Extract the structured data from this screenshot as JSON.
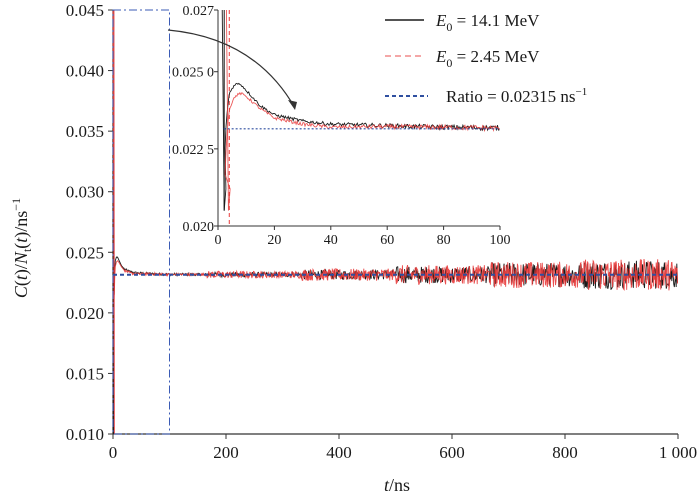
{
  "chart_data": [
    {
      "id": "main",
      "type": "line",
      "xlabel": "t/ns",
      "ylabel": "C(t)/Nt(t)/ns-1",
      "xlim": [
        0,
        1000
      ],
      "ylim": [
        0.01,
        0.045
      ],
      "x_ticks": [
        0,
        200,
        400,
        600,
        800,
        1000
      ],
      "x_tick_labels": [
        "0",
        "200",
        "400",
        "600",
        "800",
        "1 000"
      ],
      "y_ticks": [
        0.01,
        0.015,
        0.02,
        0.025,
        0.03,
        0.035,
        0.04,
        0.045
      ],
      "y_tick_labels": [
        "0.010",
        "0.015",
        "0.020",
        "0.025",
        "0.030",
        "0.035",
        "0.040",
        "0.045"
      ],
      "grid": false,
      "legend_position": "top-right",
      "series": [
        {
          "name": "E0 = 14.1 MeV",
          "color": "#1a1a1a",
          "style": "solid",
          "x": [
            0,
            1,
            2,
            3,
            4,
            6,
            8,
            10,
            15,
            20,
            30,
            40,
            60,
            80,
            100,
            200,
            300,
            400,
            500,
            600,
            700,
            800,
            900,
            1000
          ],
          "y": [
            0.045,
            0.028,
            0.0215,
            0.0235,
            0.0243,
            0.0246,
            0.0246,
            0.0244,
            0.0239,
            0.0236,
            0.0234,
            0.0233,
            0.02325,
            0.0232,
            0.02318,
            0.02316,
            0.02315,
            0.02315,
            0.02315,
            0.02315,
            0.02315,
            0.02315,
            0.02315,
            0.02315
          ],
          "noise_amplitude": [
            0.0001,
            0.0002,
            0.0004,
            0.0007,
            0.001,
            0.0012
          ]
        },
        {
          "name": "E0 = 2.45 MeV",
          "color": "#e83a3a",
          "style": "dashed",
          "x": [
            0,
            1,
            2,
            3,
            4,
            6,
            8,
            10,
            15,
            20,
            30,
            40,
            60,
            80,
            100,
            200,
            300,
            400,
            500,
            600,
            700,
            800,
            900,
            1000
          ],
          "y": [
            0.045,
            0.03,
            0.0205,
            0.0228,
            0.0238,
            0.0242,
            0.0243,
            0.0242,
            0.0238,
            0.0235,
            0.0233,
            0.0232,
            0.02322,
            0.0232,
            0.02317,
            0.02315,
            0.02315,
            0.02315,
            0.02315,
            0.02315,
            0.02315,
            0.02315,
            0.02315,
            0.02315
          ],
          "noise_amplitude": [
            0.0001,
            0.0003,
            0.0005,
            0.0008,
            0.0011,
            0.0013
          ]
        },
        {
          "name": "Ratio = 0.02315 ns-1",
          "color": "#2f4fa0",
          "style": "dotted",
          "x": [
            0,
            1000
          ],
          "y": [
            0.02315,
            0.02315
          ]
        }
      ],
      "legend": [
        {
          "prefix": "E",
          "sub": "0",
          "suffix": " = 14.1 MeV"
        },
        {
          "prefix": "E",
          "sub": "0",
          "suffix": " = 2.45 MeV"
        },
        {
          "prefix": "Ratio = 0.02315 ns",
          "sup": "−1",
          "suffix": ""
        }
      ],
      "zoom_box": {
        "x": [
          0,
          100
        ],
        "y": [
          0.01,
          0.045
        ]
      }
    },
    {
      "id": "inset",
      "type": "line",
      "xlim": [
        0,
        100
      ],
      "ylim": [
        0.02,
        0.027
      ],
      "x_ticks": [
        0,
        20,
        40,
        60,
        80,
        100
      ],
      "x_tick_labels": [
        "0",
        "20",
        "40",
        "60",
        "80",
        "100"
      ],
      "y_ticks": [
        0.02,
        0.0225,
        0.025,
        0.027
      ],
      "y_tick_labels": [
        "0.020",
        "0.022 5",
        "0.025 0",
        "0.027"
      ],
      "grid": false
    }
  ]
}
